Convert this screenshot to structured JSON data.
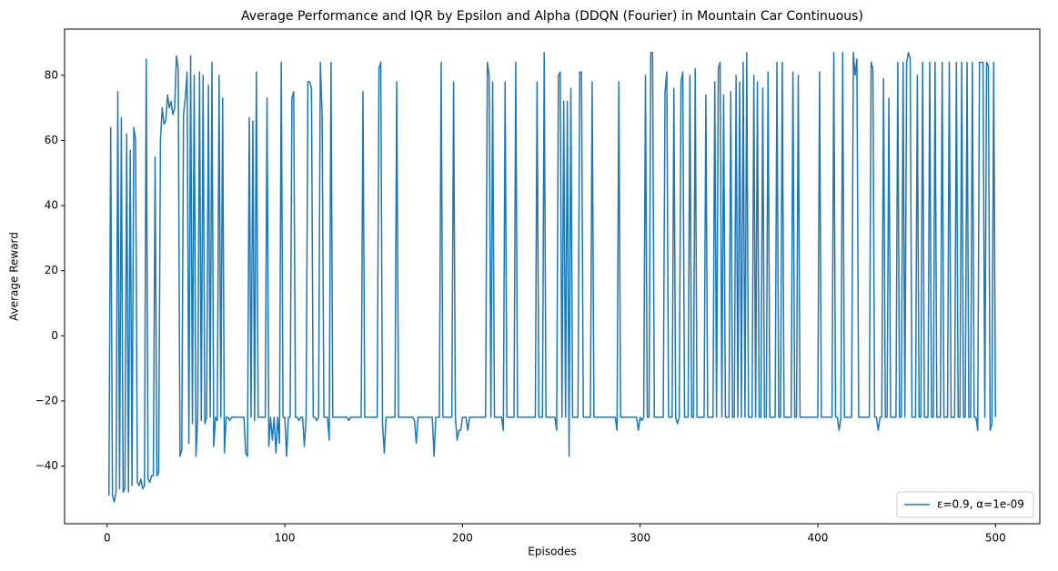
{
  "chart_data": {
    "type": "line",
    "title": "Average Performance and IQR by Epsilon and Alpha (DDQN (Fourier) in Mountain Car Continuous)",
    "x_label": "Episodes",
    "y_label": "Average Reward",
    "xlim": [
      -23.95,
      524.95
    ],
    "ylim": [
      -57.7,
      94.2
    ],
    "xticks": [
      0,
      100,
      200,
      300,
      400,
      500
    ],
    "yticks": [
      {
        "value": -40,
        "label": "−40"
      },
      {
        "value": -20,
        "label": "−20"
      },
      0,
      20,
      40,
      60,
      80
    ],
    "legend": "lower right",
    "grid": false,
    "x": [
      1,
      2,
      3,
      4,
      5,
      6,
      7,
      8,
      9,
      10,
      11,
      12,
      13,
      14,
      15,
      16,
      17,
      18,
      19,
      20,
      21,
      22,
      23,
      24,
      25,
      26,
      27,
      28,
      29,
      30,
      31,
      32,
      33,
      34,
      35,
      36,
      37,
      38,
      39,
      40,
      41,
      42,
      43,
      44,
      45,
      46,
      47,
      48,
      49,
      50,
      51,
      52,
      53,
      54,
      55,
      56,
      57,
      58,
      59,
      60,
      61,
      62,
      63,
      64,
      65,
      66,
      67,
      68,
      69,
      70,
      71,
      72,
      73,
      74,
      75,
      76,
      77,
      78,
      79,
      80,
      81,
      82,
      83,
      84,
      85,
      86,
      87,
      88,
      89,
      90,
      91,
      92,
      93,
      94,
      95,
      96,
      97,
      98,
      99,
      100,
      101,
      102,
      103,
      104,
      105,
      106,
      107,
      108,
      109,
      110,
      111,
      112,
      113,
      114,
      115,
      116,
      117,
      118,
      119,
      120,
      121,
      122,
      123,
      124,
      125,
      126,
      127,
      128,
      129,
      130,
      131,
      132,
      133,
      134,
      135,
      136,
      137,
      138,
      139,
      140,
      141,
      142,
      143,
      144,
      145,
      146,
      147,
      148,
      149,
      150,
      151,
      152,
      153,
      154,
      155,
      156,
      157,
      158,
      159,
      160,
      161,
      162,
      163,
      164,
      165,
      166,
      167,
      168,
      169,
      170,
      171,
      172,
      173,
      174,
      175,
      176,
      177,
      178,
      179,
      180,
      181,
      182,
      183,
      184,
      185,
      186,
      187,
      188,
      189,
      190,
      191,
      192,
      193,
      194,
      195,
      196,
      197,
      198,
      199,
      200,
      201,
      202,
      203,
      204,
      205,
      206,
      207,
      208,
      209,
      210,
      211,
      212,
      213,
      214,
      215,
      216,
      217,
      218,
      219,
      220,
      221,
      222,
      223,
      224,
      225,
      226,
      227,
      228,
      229,
      230,
      231,
      232,
      233,
      234,
      235,
      236,
      237,
      238,
      239,
      240,
      241,
      242,
      243,
      244,
      245,
      246,
      247,
      248,
      249,
      250,
      251,
      252,
      253,
      254,
      255,
      256,
      257,
      258,
      259,
      260,
      261,
      262,
      263,
      264,
      265,
      266,
      267,
      268,
      269,
      270,
      271,
      272,
      273,
      274,
      275,
      276,
      277,
      278,
      279,
      280,
      281,
      282,
      283,
      284,
      285,
      286,
      287,
      288,
      289,
      290,
      291,
      292,
      293,
      294,
      295,
      296,
      297,
      298,
      299,
      300,
      301,
      302,
      303,
      304,
      305,
      306,
      307,
      308,
      309,
      310,
      311,
      312,
      313,
      314,
      315,
      316,
      317,
      318,
      319,
      320,
      321,
      322,
      323,
      324,
      325,
      326,
      327,
      328,
      329,
      330,
      331,
      332,
      333,
      334,
      335,
      336,
      337,
      338,
      339,
      340,
      341,
      342,
      343,
      344,
      345,
      346,
      347,
      348,
      349,
      350,
      351,
      352,
      353,
      354,
      355,
      356,
      357,
      358,
      359,
      360,
      361,
      362,
      363,
      364,
      365,
      366,
      367,
      368,
      369,
      370,
      371,
      372,
      373,
      374,
      375,
      376,
      377,
      378,
      379,
      380,
      381,
      382,
      383,
      384,
      385,
      386,
      387,
      388,
      389,
      390,
      391,
      392,
      393,
      394,
      395,
      396,
      397,
      398,
      399,
      400,
      401,
      402,
      403,
      404,
      405,
      406,
      407,
      408,
      409,
      410,
      411,
      412,
      413,
      414,
      415,
      416,
      417,
      418,
      419,
      420,
      421,
      422,
      423,
      424,
      425,
      426,
      427,
      428,
      429,
      430,
      431,
      432,
      433,
      434,
      435,
      436,
      437,
      438,
      439,
      440,
      441,
      442,
      443,
      444,
      445,
      446,
      447,
      448,
      449,
      450,
      451,
      452,
      453,
      454,
      455,
      456,
      457,
      458,
      459,
      460,
      461,
      462,
      463,
      464,
      465,
      466,
      467,
      468,
      469,
      470,
      471,
      472,
      473,
      474,
      475,
      476,
      477,
      478,
      479,
      480,
      481,
      482,
      483,
      484,
      485,
      486,
      487,
      488,
      489,
      490,
      491,
      492,
      493,
      494,
      495,
      496,
      497,
      498,
      499,
      500
    ],
    "series": [
      {
        "name": "ε=0.9, α=1e-09",
        "color": "#1f77b4",
        "values": [
          -49,
          64,
          -49,
          -51,
          -48,
          75,
          -47,
          67,
          -48,
          -47,
          62,
          -48,
          57,
          -46,
          64,
          60,
          -45,
          -46,
          -44,
          -47,
          -46,
          85,
          -44,
          -45,
          -43,
          -43,
          55,
          -43,
          -42,
          60,
          70,
          65,
          66,
          74,
          70,
          72,
          68,
          70,
          86,
          82,
          -37,
          -35,
          68,
          73,
          81,
          -33,
          86,
          -27,
          80,
          -37,
          -25,
          81,
          -26,
          80,
          -27,
          -25,
          77,
          -25,
          84,
          -34,
          -25,
          -26,
          80,
          -25,
          73,
          -36,
          -25,
          -25,
          -26,
          -25,
          -25,
          -25,
          -25,
          -25,
          -25,
          -25,
          -25,
          -36,
          -37,
          67,
          -25,
          66,
          -26,
          81,
          -25,
          -25,
          -25,
          -25,
          -25,
          73,
          -34,
          -25,
          -32,
          -25,
          -36,
          -25,
          -33,
          84,
          -25,
          -25,
          -37,
          -25,
          -25,
          73,
          75,
          -25,
          -25,
          -26,
          -25,
          -25,
          -34,
          -25,
          78,
          78,
          76,
          -25,
          -25,
          -26,
          -25,
          84,
          68,
          -25,
          -25,
          -25,
          -32,
          84,
          -25,
          -25,
          -25,
          -25,
          -25,
          -25,
          -25,
          -25,
          -25,
          -26,
          -25,
          -25,
          -25,
          -25,
          -25,
          -25,
          -25,
          75,
          -25,
          -25,
          -25,
          -25,
          -25,
          -25,
          -25,
          -25,
          82,
          84,
          -27,
          -36,
          -25,
          -25,
          -25,
          -25,
          -25,
          -25,
          78,
          -25,
          -25,
          -25,
          -25,
          -25,
          -25,
          -25,
          -25,
          -25,
          -26,
          -33,
          -25,
          -25,
          -25,
          -25,
          -25,
          -25,
          -25,
          -25,
          -25,
          -37,
          -25,
          -25,
          -25,
          84,
          -25,
          -25,
          -25,
          -25,
          -25,
          -25,
          78,
          -25,
          -32,
          -29,
          -29,
          -25,
          -25,
          -25,
          -29,
          -25,
          -25,
          -25,
          -25,
          -25,
          -25,
          -25,
          -25,
          -25,
          -25,
          84,
          80,
          -25,
          78,
          -25,
          -25,
          -25,
          -25,
          -25,
          -29,
          78,
          -25,
          -25,
          -25,
          -25,
          -25,
          84,
          -25,
          -25,
          -25,
          -25,
          -25,
          -25,
          -25,
          -25,
          -25,
          -25,
          -25,
          78,
          -25,
          -25,
          -25,
          87,
          -25,
          -25,
          -25,
          -25,
          -25,
          -25,
          -29,
          80,
          81,
          -25,
          72,
          -25,
          72,
          -37,
          76,
          -25,
          -25,
          -25,
          -25,
          81,
          81,
          -25,
          -25,
          -25,
          -25,
          -25,
          78,
          -25,
          -25,
          -25,
          -25,
          -25,
          -25,
          -25,
          -25,
          -25,
          -25,
          -25,
          -25,
          -25,
          -29,
          78,
          -25,
          -25,
          -25,
          -25,
          -25,
          -25,
          -25,
          -25,
          -25,
          -25,
          -29,
          -25,
          -26,
          -25,
          80,
          -25,
          -25,
          87,
          87,
          -25,
          -25,
          -25,
          -25,
          -25,
          -25,
          75,
          81,
          -25,
          -25,
          -25,
          76,
          -25,
          -27,
          -25,
          78,
          81,
          -25,
          -25,
          -25,
          80,
          -25,
          -25,
          82,
          -25,
          -25,
          -25,
          -25,
          -25,
          74,
          -25,
          -25,
          -25,
          -25,
          78,
          -25,
          82,
          84,
          -25,
          74,
          -25,
          -25,
          -25,
          75,
          -25,
          -25,
          80,
          -25,
          78,
          -25,
          84,
          -25,
          87,
          -25,
          -25,
          -25,
          80,
          -25,
          78,
          -25,
          -25,
          76,
          -25,
          -25,
          81,
          -25,
          -25,
          -25,
          -25,
          84,
          -25,
          -25,
          84,
          -25,
          -25,
          -25,
          -25,
          -25,
          81,
          -25,
          -25,
          80,
          -25,
          -25,
          -25,
          -25,
          -25,
          -25,
          -25,
          -25,
          -25,
          -25,
          -25,
          81,
          -25,
          -25,
          -25,
          -25,
          -25,
          -25,
          -25,
          87,
          -25,
          -25,
          -29,
          -25,
          87,
          -25,
          -25,
          -25,
          -25,
          -25,
          87,
          80,
          85,
          -25,
          -25,
          -25,
          -25,
          -25,
          -25,
          -25,
          84,
          82,
          -25,
          -25,
          -29,
          -25,
          -25,
          79,
          -25,
          -25,
          73,
          -25,
          -25,
          -25,
          -25,
          84,
          -25,
          -25,
          84,
          -25,
          84,
          87,
          85,
          -25,
          -25,
          -25,
          80,
          -25,
          -25,
          84,
          -25,
          -25,
          -25,
          84,
          -25,
          -25,
          84,
          -25,
          -25,
          -25,
          84,
          -25,
          -25,
          -25,
          84,
          -25,
          -25,
          -25,
          84,
          -25,
          -25,
          84,
          -25,
          -25,
          84,
          -25,
          -25,
          84,
          -25,
          -25,
          -29,
          84,
          84,
          84,
          -25,
          84,
          83,
          -29,
          -27,
          84,
          -25
        ]
      }
    ]
  }
}
